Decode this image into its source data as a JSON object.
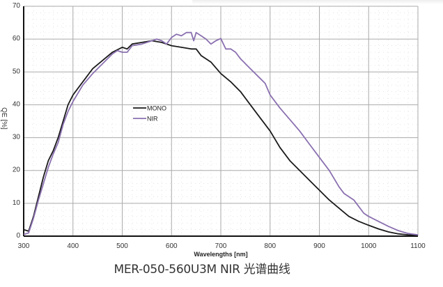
{
  "chart_data": {
    "type": "line",
    "title": "",
    "xlabel": "Wavelengths [nm]",
    "ylabel": "QE [%]",
    "xlim": [
      300,
      1100
    ],
    "ylim": [
      0,
      70
    ],
    "xticks": [
      300,
      400,
      500,
      600,
      700,
      800,
      900,
      1000,
      1100
    ],
    "yticks": [
      0,
      10,
      20,
      30,
      40,
      50,
      60,
      70
    ],
    "grid": true,
    "legend_position": "center-left",
    "series": [
      {
        "name": "MONO",
        "color": "#1a1a1a",
        "x": [
          300,
          310,
          320,
          330,
          340,
          350,
          360,
          370,
          380,
          390,
          400,
          420,
          440,
          460,
          480,
          500,
          510,
          520,
          540,
          560,
          580,
          600,
          620,
          640,
          650,
          660,
          680,
          700,
          720,
          740,
          760,
          780,
          800,
          820,
          840,
          860,
          880,
          900,
          920,
          940,
          960,
          980,
          1000,
          1020,
          1040,
          1060,
          1080,
          1100
        ],
        "y": [
          2,
          1.5,
          6,
          12,
          18,
          23,
          26,
          30,
          35,
          40,
          43,
          47,
          51,
          53.5,
          56,
          57.5,
          57,
          58.5,
          59,
          59.5,
          59,
          58,
          57.5,
          57,
          57,
          55,
          53,
          49.5,
          47,
          44,
          40,
          36,
          32,
          27,
          23,
          20,
          17,
          14,
          11,
          8.5,
          6,
          4.5,
          3.3,
          2.2,
          1.3,
          0.7,
          0.4,
          0.2
        ]
      },
      {
        "name": "NIR",
        "color": "#8a70b0",
        "x": [
          300,
          310,
          320,
          330,
          340,
          350,
          360,
          370,
          380,
          390,
          400,
          420,
          440,
          460,
          480,
          490,
          500,
          510,
          520,
          540,
          560,
          570,
          580,
          590,
          600,
          610,
          620,
          630,
          640,
          645,
          650,
          660,
          670,
          680,
          690,
          700,
          710,
          720,
          730,
          740,
          760,
          780,
          790,
          800,
          820,
          840,
          860,
          880,
          900,
          920,
          940,
          950,
          970,
          990,
          1000,
          1020,
          1040,
          1060,
          1080,
          1100
        ],
        "y": [
          0.5,
          1,
          5.5,
          11,
          16,
          21,
          25,
          28.5,
          34,
          38,
          41,
          46,
          49.5,
          52.5,
          55.5,
          56.5,
          56,
          56,
          58,
          58.5,
          59.5,
          60,
          59.5,
          58.5,
          60.5,
          61.5,
          61,
          62,
          62,
          59.5,
          62,
          61,
          60,
          58.5,
          59.5,
          60.2,
          57,
          57,
          56,
          54,
          51,
          48,
          46.5,
          43,
          39,
          35.5,
          32,
          28,
          24,
          20,
          15,
          13,
          11,
          7,
          6,
          4.5,
          3,
          1.7,
          0.8,
          0.4
        ]
      }
    ]
  },
  "caption": "MER-050-560U3M NIR 光谱曲线"
}
